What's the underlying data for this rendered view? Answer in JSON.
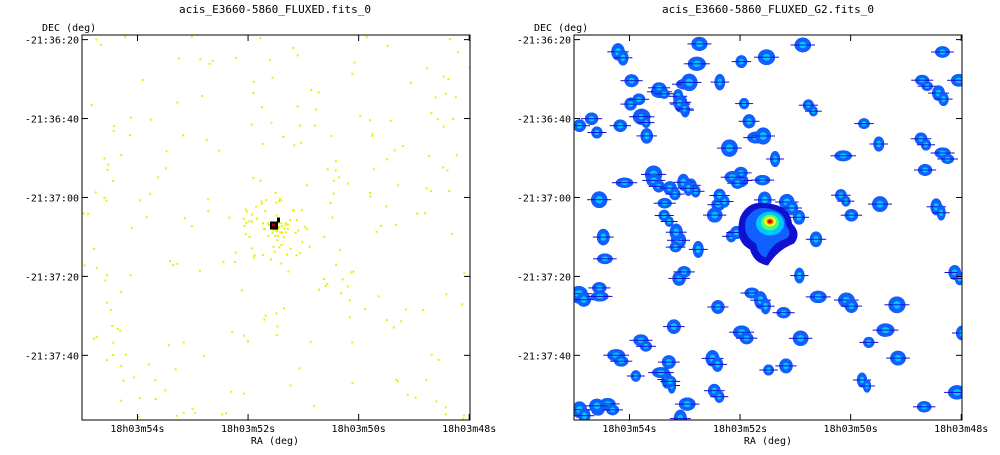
{
  "chart_data": [
    {
      "type": "scatter",
      "title": "acis_E3660-5860_FLUXED.fits_0",
      "xlabel": "RA (deg)",
      "ylabel": "DEC (deg)",
      "xticks": [
        "18h03m54s",
        "18h03m52s",
        "18h03m50s",
        "18h03m48s"
      ],
      "yticks": [
        "-21:36:20",
        "-21:36:40",
        "-21:37:00",
        "-21:37:20",
        "-21:37:40"
      ],
      "point_color": "#e8f000",
      "bright_source": "black/red core at center near 18h03m51.9s, -21:37:08"
    },
    {
      "type": "heatmap",
      "title": "acis_E3660-5860_FLUXED_G2.fits_0",
      "xlabel": "RA (deg)",
      "ylabel": "DEC (deg)",
      "xticks": [
        "18h03m54s",
        "18h03m52s",
        "18h03m50s",
        "18h03m48s"
      ],
      "yticks": [
        "-21:36:20",
        "-21:36:40",
        "-21:37:00",
        "-21:37:20",
        "-21:37:40"
      ],
      "colormap": [
        "#1010d0",
        "#1060ff",
        "#00c8ff",
        "#40ff80",
        "#ffff00",
        "#ff6000",
        "#c00000"
      ]
    }
  ]
}
